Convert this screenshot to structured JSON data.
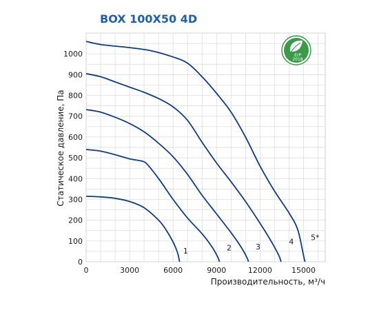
{
  "chart_data": {
    "type": "line",
    "title": "BOX 100X50 4D",
    "xlabel": "Производительность, м³/ч",
    "ylabel": "Статическое давление, Па",
    "xlim": [
      0,
      16500
    ],
    "ylim": [
      0,
      1100
    ],
    "x_ticks": [
      "0",
      "3000",
      "6000",
      "9000",
      "12000",
      "15000"
    ],
    "y_ticks": [
      "0",
      "100",
      "200",
      "300",
      "400",
      "500",
      "600",
      "700",
      "800",
      "900",
      "1000"
    ],
    "grid": true,
    "badge": {
      "text": "ErP",
      "year": "2018",
      "color": "#3a9a48"
    },
    "line_color": "#0a3a8a",
    "series": [
      {
        "name": "1",
        "points": [
          [
            0,
            315
          ],
          [
            1000,
            312
          ],
          [
            2000,
            305
          ],
          [
            3000,
            290
          ],
          [
            4000,
            260
          ],
          [
            5000,
            200
          ],
          [
            5500,
            155
          ],
          [
            6000,
            95
          ],
          [
            6300,
            45
          ],
          [
            6450,
            0
          ]
        ]
      },
      {
        "name": "2",
        "points": [
          [
            0,
            540
          ],
          [
            1000,
            532
          ],
          [
            2000,
            515
          ],
          [
            3000,
            495
          ],
          [
            3800,
            485
          ],
          [
            4200,
            470
          ],
          [
            5000,
            400
          ],
          [
            6000,
            300
          ],
          [
            7000,
            210
          ],
          [
            8000,
            135
          ],
          [
            8700,
            70
          ],
          [
            9100,
            20
          ],
          [
            9200,
            0
          ]
        ]
      },
      {
        "name": "3",
        "points": [
          [
            0,
            732
          ],
          [
            1000,
            720
          ],
          [
            2000,
            695
          ],
          [
            3000,
            665
          ],
          [
            4000,
            625
          ],
          [
            5000,
            570
          ],
          [
            6000,
            505
          ],
          [
            7000,
            420
          ],
          [
            8000,
            320
          ],
          [
            9000,
            230
          ],
          [
            10000,
            140
          ],
          [
            10700,
            70
          ],
          [
            11100,
            20
          ],
          [
            11200,
            0
          ]
        ]
      },
      {
        "name": "4",
        "points": [
          [
            0,
            905
          ],
          [
            1000,
            890
          ],
          [
            2000,
            865
          ],
          [
            3000,
            840
          ],
          [
            4000,
            815
          ],
          [
            5000,
            785
          ],
          [
            6000,
            745
          ],
          [
            7000,
            680
          ],
          [
            8000,
            575
          ],
          [
            9000,
            475
          ],
          [
            10000,
            385
          ],
          [
            11000,
            290
          ],
          [
            12000,
            185
          ],
          [
            12800,
            95
          ],
          [
            13300,
            30
          ],
          [
            13450,
            0
          ]
        ]
      },
      {
        "name": "5*",
        "points": [
          [
            0,
            1060
          ],
          [
            1000,
            1045
          ],
          [
            3000,
            1030
          ],
          [
            4500,
            1015
          ],
          [
            6000,
            985
          ],
          [
            7000,
            955
          ],
          [
            8000,
            890
          ],
          [
            9000,
            810
          ],
          [
            10000,
            720
          ],
          [
            11000,
            600
          ],
          [
            12000,
            460
          ],
          [
            13000,
            340
          ],
          [
            14000,
            235
          ],
          [
            14600,
            155
          ],
          [
            15000,
            30
          ],
          [
            15100,
            0
          ]
        ]
      }
    ],
    "labels": [
      {
        "text": "1",
        "x": 6700,
        "y": 40
      },
      {
        "text": "2",
        "x": 9700,
        "y": 55
      },
      {
        "text": "3",
        "x": 11700,
        "y": 60
      },
      {
        "text": "4",
        "x": 14000,
        "y": 85
      },
      {
        "text": "5*",
        "x": 15500,
        "y": 105
      }
    ]
  }
}
